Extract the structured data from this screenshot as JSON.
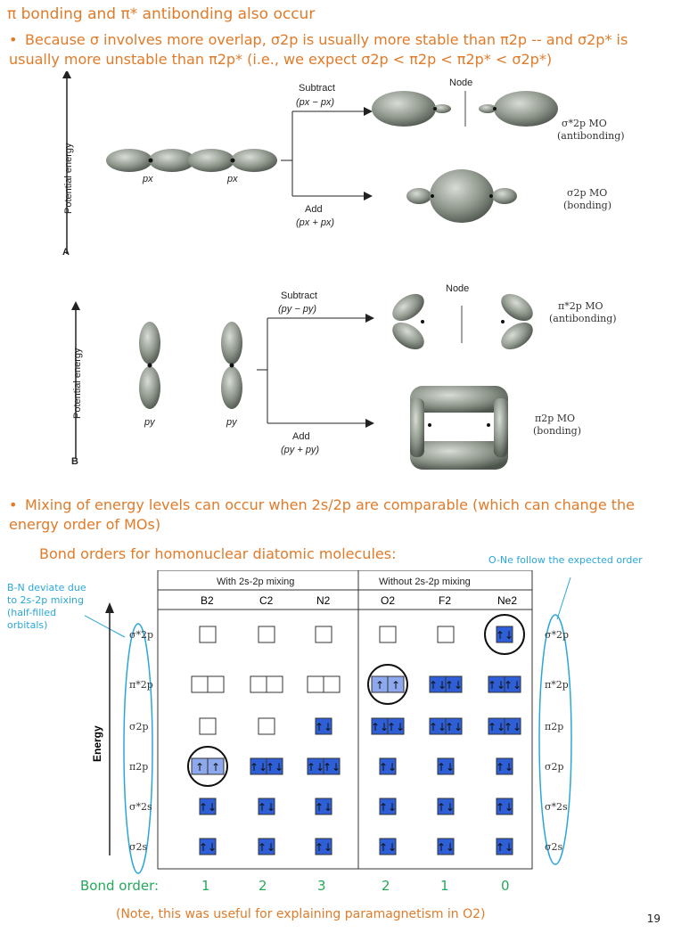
{
  "title": "π bonding and π* antibonding also occur",
  "bullet1": "Because σ involves more overlap, σ2p is usually more stable than π2p -- and σ2p* is usually more unstable than π2p* (i.e., we expect σ2p < π2p < π2p* < σ2p*)",
  "bullet2": "Mixing of energy levels can occur when 2s/2p are comparable (which can change the energy order of MOs)",
  "bond_orders_title": "Bond orders for homonuclear diatomic molecules:",
  "figA": {
    "yaxis": "Potential energy",
    "letter": "A",
    "subtract": "Subtract",
    "subtract_expr": "(px − px)",
    "add": "Add",
    "add_expr": "(px + px)",
    "node": "Node",
    "anti": "σ*2p MO",
    "anti_sub": "(antibonding)",
    "bond": "σ2p MO",
    "bond_sub": "(bonding)",
    "p1": "px",
    "p2": "px"
  },
  "figB": {
    "yaxis": "Potential energy",
    "letter": "B",
    "subtract": "Subtract",
    "subtract_expr": "(py − py)",
    "add": "Add",
    "add_expr": "(py + py)",
    "node": "Node",
    "anti": "π*2p MO",
    "anti_sub": "(antibonding)",
    "bond": "π2p MO",
    "bond_sub": "(bonding)",
    "p1": "py",
    "p2": "py"
  },
  "notes": {
    "left": "B-N deviate due to 2s-2p mixing (half-filled orbitals)",
    "right": "O-Ne follow the expected order"
  },
  "table": {
    "group1": "With 2s-2p mixing",
    "group2": "Without 2s-2p mixing",
    "molecules": [
      "B2",
      "C2",
      "N2",
      "O2",
      "F2",
      "Ne2"
    ],
    "energy_label": "Energy",
    "left_levels": [
      "σ*2p",
      "π*2p",
      "σ2p",
      "π2p",
      "σ*2s",
      "σ2s"
    ],
    "right_levels": [
      "σ*2p",
      "π*2p",
      "π2p",
      "σ2p",
      "σ*2s",
      "σ2s"
    ]
  },
  "bond_order_label": "Bond order:",
  "bond_orders": [
    "1",
    "2",
    "3",
    "2",
    "1",
    "0"
  ],
  "footnote": "(Note, this was useful for explaining paramagnetism in O2)",
  "page_number": "19",
  "colors": {
    "orange": "#e07b2a",
    "blue_box": "#2f5fd6",
    "light_box": "#8ea8ee",
    "note_blue": "#2aa7d8",
    "green": "#27a85a"
  }
}
